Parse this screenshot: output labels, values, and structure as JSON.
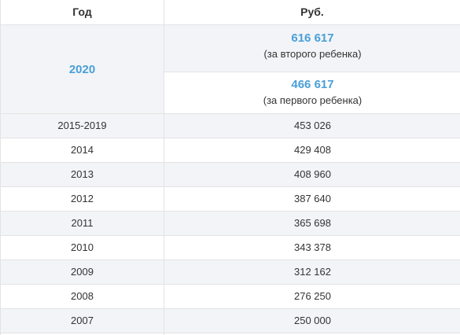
{
  "header": {
    "year": "Год",
    "amount": "Руб."
  },
  "top": {
    "year": "2020",
    "second_amount": "616 617",
    "second_note": "(за второго ребенка)",
    "first_amount": "466 617",
    "first_note": "(за первого ребенка)"
  },
  "rows": [
    {
      "year": "2015-2019",
      "amount": "453 026"
    },
    {
      "year": "2014",
      "amount": "429 408"
    },
    {
      "year": "2013",
      "amount": "408 960"
    },
    {
      "year": "2012",
      "amount": "387 640"
    },
    {
      "year": "2011",
      "amount": "365 698"
    },
    {
      "year": "2010",
      "amount": "343 378"
    },
    {
      "year": "2009",
      "amount": "312 162"
    },
    {
      "year": "2008",
      "amount": "276 250"
    },
    {
      "year": "2007",
      "amount": "250 000"
    }
  ],
  "colors": {
    "accent": "#4a9fd8",
    "shade": "#f2f4f7",
    "border": "#e3e3e3"
  }
}
